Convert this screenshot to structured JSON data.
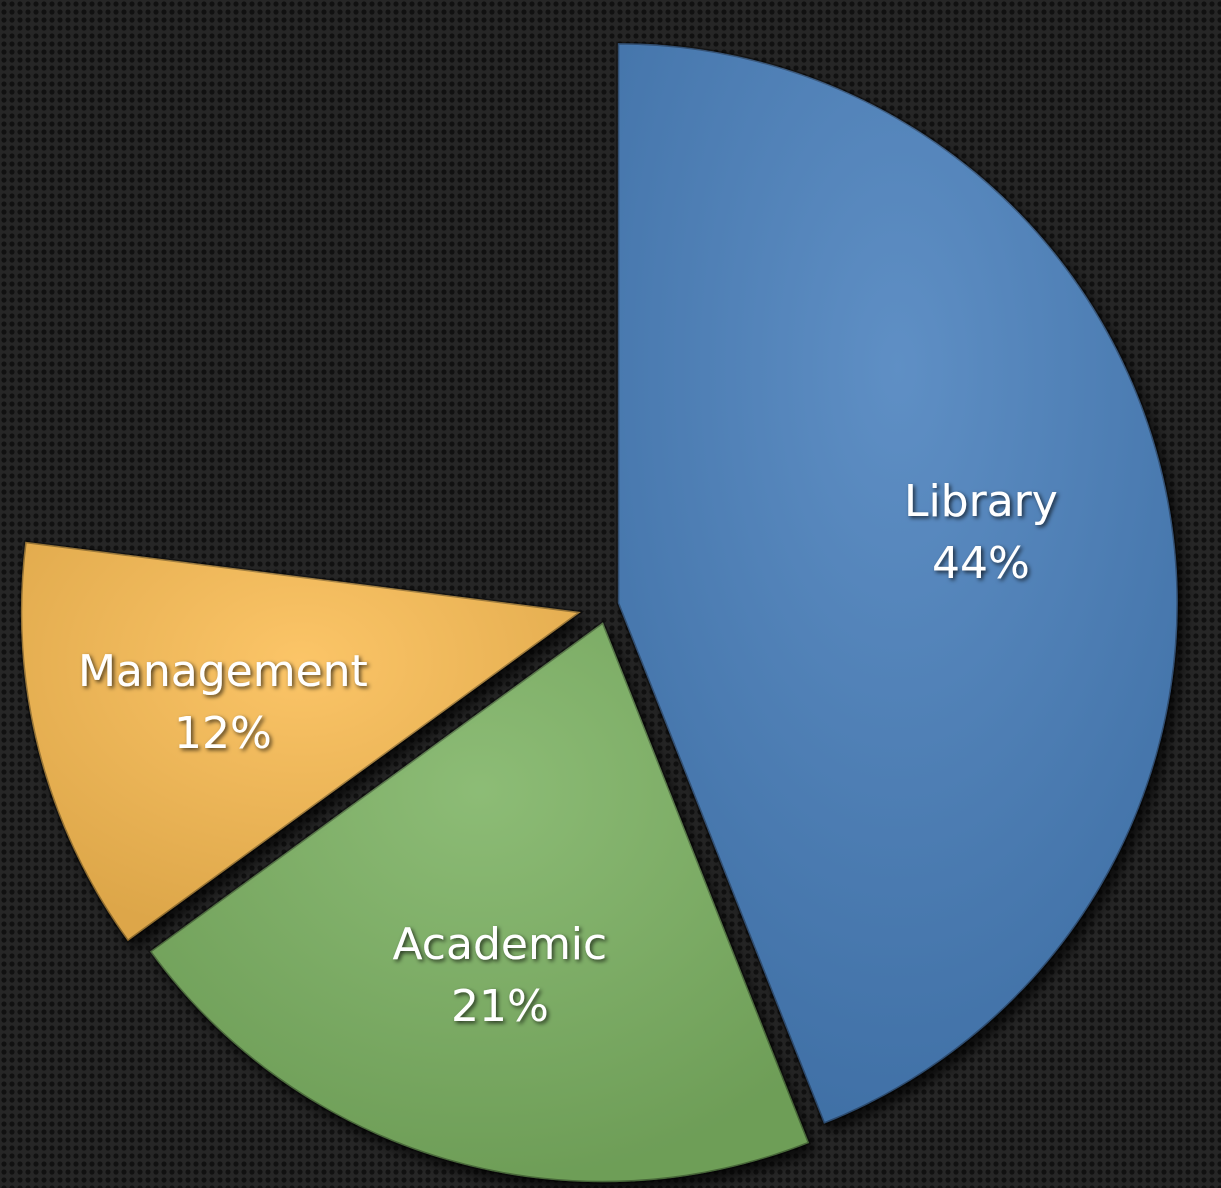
{
  "chart_data": {
    "type": "pie",
    "categories": [
      "Library",
      "Academic",
      "Management"
    ],
    "values": [
      44,
      21,
      12
    ],
    "value_labels": [
      "44%",
      "21%",
      "12%"
    ],
    "colors": [
      "#4a80bd",
      "#7db363",
      "#fbbd52"
    ]
  }
}
